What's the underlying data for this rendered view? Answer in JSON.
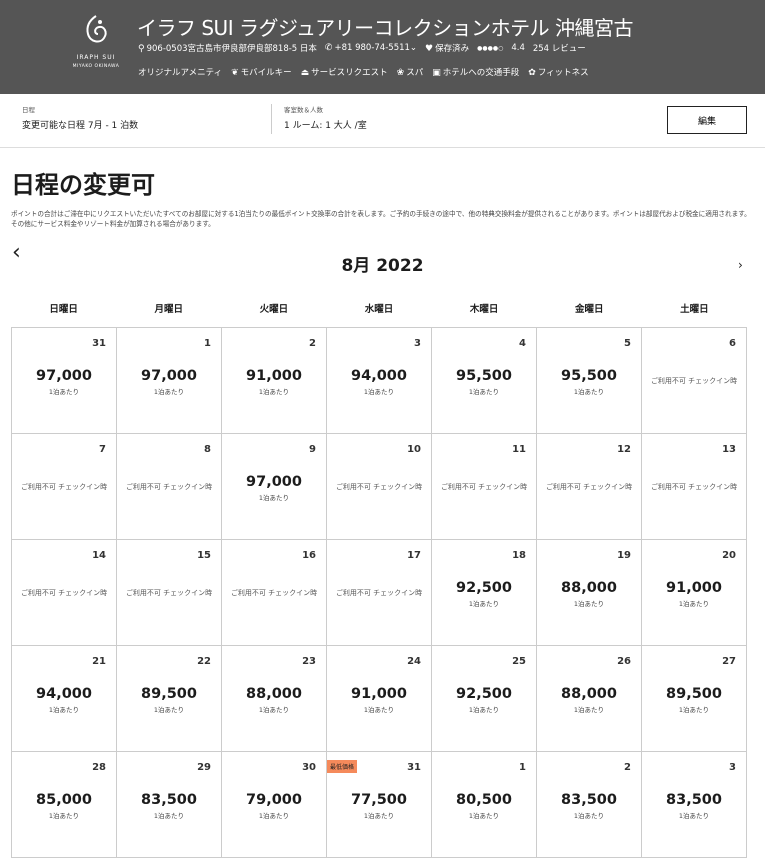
{
  "header": {
    "logo_line1": "IRAPH SUI",
    "logo_line2": "MIYAKO OKINAWA",
    "title": "イラフ SUI ラグジュアリーコレクションホテル 沖縄宮古",
    "address": "906-0503宮古島市伊良部伊良部818-5 日本",
    "phone": "+81 980-74-5511",
    "saved": "保存済み",
    "rating_dots": "●●●●○",
    "rating": "4.4",
    "reviews": "254 レビュー",
    "amenities": [
      {
        "label": "オリジナルアメニティ",
        "icon": ""
      },
      {
        "label": "モバイルキー",
        "icon": "❦"
      },
      {
        "label": "サービスリクエスト",
        "icon": "⏏"
      },
      {
        "label": "スパ",
        "icon": "❀"
      },
      {
        "label": "ホテルへの交通手段",
        "icon": "▣"
      },
      {
        "label": "フィットネス",
        "icon": "✿"
      }
    ]
  },
  "search": {
    "dates_label": "日程",
    "dates_value": "変更可能な日程 7月 - 1 泊数",
    "guests_label": "客室数＆人数",
    "guests_value": "1 ルーム: 1 大人 /室",
    "edit_label": "編集"
  },
  "page": {
    "title": "日程の変更可",
    "description": "ポイントの合計はご滞在中にリクエストいただいたすべてのお部屋に対する1泊当たりの最低ポイント交換率の合計を表します。ご予約の手続きの途中で、他の特典交換料金が提供されることがあります。ポイントは部屋代および税金に適用されます。その他にサービス料金やリゾート料金が加算される場合があります。"
  },
  "calendar": {
    "month": "8月 2022",
    "prev": "‹",
    "next": "›",
    "weekdays": [
      "日曜日",
      "月曜日",
      "火曜日",
      "水曜日",
      "木曜日",
      "金曜日",
      "土曜日"
    ],
    "unit": "1泊あたり",
    "unavailable": "ご利用不可 チェックイン時",
    "days": [
      {
        "d": "31",
        "p": "97,000"
      },
      {
        "d": "1",
        "p": "97,000"
      },
      {
        "d": "2",
        "p": "91,000"
      },
      {
        "d": "3",
        "p": "94,000"
      },
      {
        "d": "4",
        "p": "95,500"
      },
      {
        "d": "5",
        "p": "95,500"
      },
      {
        "d": "6",
        "p": null
      },
      {
        "d": "7",
        "p": null
      },
      {
        "d": "8",
        "p": null
      },
      {
        "d": "9",
        "p": "97,000"
      },
      {
        "d": "10",
        "p": null
      },
      {
        "d": "11",
        "p": null
      },
      {
        "d": "12",
        "p": null
      },
      {
        "d": "13",
        "p": null
      },
      {
        "d": "14",
        "p": null
      },
      {
        "d": "15",
        "p": null
      },
      {
        "d": "16",
        "p": null
      },
      {
        "d": "17",
        "p": null
      },
      {
        "d": "18",
        "p": "92,500"
      },
      {
        "d": "19",
        "p": "88,000"
      },
      {
        "d": "20",
        "p": "91,000"
      },
      {
        "d": "21",
        "p": "94,000"
      },
      {
        "d": "22",
        "p": "89,500"
      },
      {
        "d": "23",
        "p": "88,000"
      },
      {
        "d": "24",
        "p": "91,000"
      },
      {
        "d": "25",
        "p": "92,500"
      },
      {
        "d": "26",
        "p": "88,000"
      },
      {
        "d": "27",
        "p": "89,500"
      },
      {
        "d": "28",
        "p": "85,000"
      },
      {
        "d": "29",
        "p": "83,500"
      },
      {
        "d": "30",
        "p": "79,000"
      },
      {
        "d": "31",
        "p": "77,500",
        "badge": "最低価格"
      },
      {
        "d": "1",
        "p": "80,500"
      },
      {
        "d": "2",
        "p": "83,500"
      },
      {
        "d": "3",
        "p": "83,500"
      }
    ]
  }
}
